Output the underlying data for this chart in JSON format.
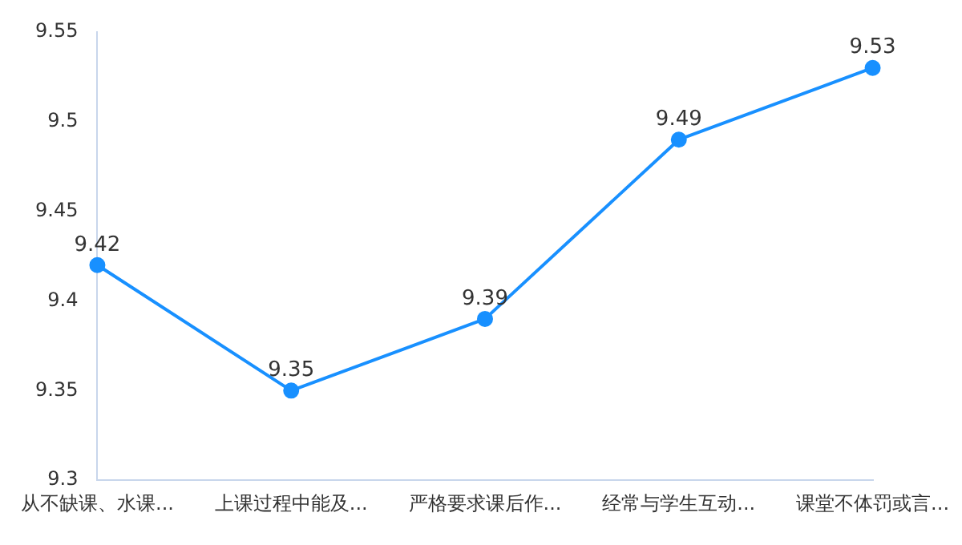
{
  "chart_data": {
    "type": "line",
    "categories": [
      "从不缺课、水课...",
      "上课过程中能及...",
      "严格要求课后作...",
      "经常与学生互动...",
      "课堂不体罚或言..."
    ],
    "series": [
      {
        "color": "#1890ff",
        "values": [
          9.42,
          9.35,
          9.39,
          9.49,
          9.53
        ]
      }
    ],
    "ylim": [
      9.3,
      9.55
    ],
    "yticks": [
      9.3,
      9.35,
      9.4,
      9.45,
      9.5,
      9.55
    ],
    "grid": false,
    "legend": false,
    "marker": "circle",
    "line_style": "solid",
    "data_labels": true
  }
}
